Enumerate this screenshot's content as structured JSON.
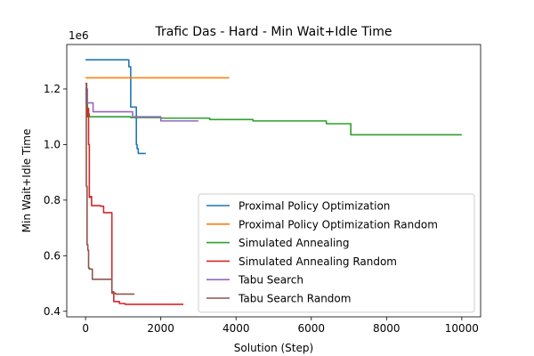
{
  "chart_data": {
    "type": "line",
    "title": "Trafic Das - Hard - Min Wait+Idle Time",
    "xlabel": "Solution (Step)",
    "ylabel": "Min Wait+Idle Time",
    "y_offset_label": "1e6",
    "xlim": [
      -500,
      10500
    ],
    "ylim": [
      0.38,
      1.36
    ],
    "x_ticks": [
      0,
      2000,
      4000,
      6000,
      8000,
      10000
    ],
    "x_tick_labels": [
      "0",
      "2000",
      "4000",
      "6000",
      "8000",
      "10000"
    ],
    "y_ticks": [
      0.4,
      0.6,
      0.8,
      1.0,
      1.2
    ],
    "y_tick_labels": [
      "0.4",
      "0.6",
      "0.8",
      "1.0",
      "1.2"
    ],
    "grid": false,
    "legend_position": "lower-right",
    "series": [
      {
        "name": "Proximal Policy Optimization",
        "color": "#1f77b4",
        "x": [
          0,
          1150,
          1150,
          1200,
          1200,
          1350,
          1350,
          1370,
          1370,
          1400,
          1400,
          1600
        ],
        "y": [
          1.305,
          1.305,
          1.28,
          1.28,
          1.135,
          1.135,
          1.0,
          1.0,
          0.985,
          0.985,
          0.968,
          0.968
        ]
      },
      {
        "name": "Proximal Policy Optimization Random",
        "color": "#ff7f0e",
        "x": [
          0,
          3820
        ],
        "y": [
          1.24,
          1.24
        ]
      },
      {
        "name": "Simulated Annealing",
        "color": "#2ca02c",
        "x": [
          0,
          20,
          20,
          50,
          50,
          100,
          100,
          1200,
          1200,
          2000,
          2000,
          3300,
          3300,
          4450,
          4450,
          6400,
          6400,
          7050,
          7050,
          10000
        ],
        "y": [
          1.2,
          1.2,
          1.15,
          1.15,
          1.11,
          1.11,
          1.1,
          1.1,
          1.097,
          1.097,
          1.095,
          1.095,
          1.09,
          1.09,
          1.085,
          1.085,
          1.075,
          1.075,
          1.035,
          1.035
        ]
      },
      {
        "name": "Simulated Annealing Random",
        "color": "#d62728",
        "x": [
          0,
          30,
          30,
          60,
          60,
          80,
          80,
          100,
          100,
          130,
          130,
          160,
          160,
          400,
          400,
          480,
          480,
          700,
          700,
          750,
          750,
          900,
          900,
          1050,
          1050,
          2600
        ],
        "y": [
          1.22,
          1.22,
          1.1,
          1.1,
          1.13,
          1.13,
          1.0,
          1.0,
          0.81,
          0.81,
          0.813,
          0.813,
          0.78,
          0.78,
          0.778,
          0.778,
          0.755,
          0.755,
          0.47,
          0.47,
          0.435,
          0.435,
          0.428,
          0.428,
          0.425,
          0.425
        ]
      },
      {
        "name": "Tabu Search",
        "color": "#9467bd",
        "x": [
          0,
          50,
          50,
          200,
          200,
          1250,
          1250,
          2000,
          2000,
          3000
        ],
        "y": [
          1.2,
          1.2,
          1.15,
          1.15,
          1.118,
          1.118,
          1.1,
          1.1,
          1.085,
          1.085
        ],
        "note_hidden": ""
      },
      {
        "name": "Tabu Search Random",
        "color": "#8c564b",
        "x": [
          0,
          20,
          20,
          40,
          40,
          60,
          60,
          80,
          80,
          100,
          100,
          180,
          180,
          700,
          700,
          800,
          800,
          1300
        ],
        "y": [
          1.22,
          1.22,
          0.85,
          0.85,
          0.64,
          0.64,
          0.62,
          0.62,
          0.556,
          0.556,
          0.552,
          0.552,
          0.515,
          0.515,
          0.465,
          0.465,
          0.462,
          0.462
        ]
      }
    ]
  }
}
